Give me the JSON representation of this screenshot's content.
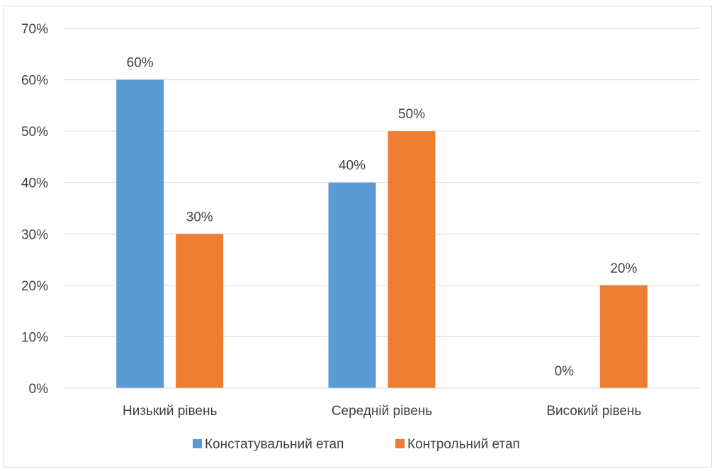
{
  "chart_data": {
    "type": "bar",
    "categories": [
      "Низький рівень",
      "Середній рівень",
      "Високий рівень"
    ],
    "series": [
      {
        "name": "Констатувальний етап",
        "values": [
          60,
          40,
          0
        ],
        "labels": [
          "60%",
          "40%",
          "0%"
        ],
        "color": "#5b9bd5"
      },
      {
        "name": "Контрольний етап",
        "values": [
          30,
          50,
          20
        ],
        "labels": [
          "30%",
          "50%",
          "20%"
        ],
        "color": "#ed7d31"
      }
    ],
    "ylim": [
      0,
      70
    ],
    "yticks": [
      0,
      10,
      20,
      30,
      40,
      50,
      60,
      70
    ],
    "ytick_labels": [
      "0%",
      "10%",
      "20%",
      "30%",
      "40%",
      "50%",
      "60%",
      "70%"
    ],
    "title": "",
    "xlabel": "",
    "ylabel": "",
    "grid": true,
    "legend_position": "bottom",
    "gridline_color": "#d9d9d9"
  }
}
